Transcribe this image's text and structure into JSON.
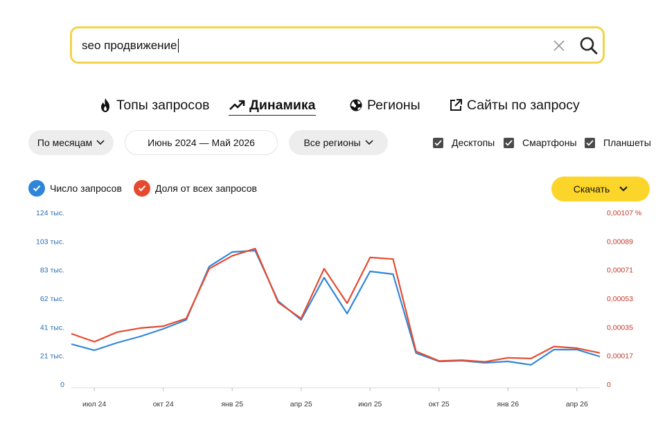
{
  "search": {
    "query": "seo продвижение"
  },
  "tabs": [
    {
      "label": "Топы запросов"
    },
    {
      "label": "Динамика"
    },
    {
      "label": "Регионы"
    },
    {
      "label": "Сайты по запросу"
    }
  ],
  "filters": {
    "period": "По месяцам",
    "range": "Июнь 2024 — Май 2026",
    "regions": "Все регионы"
  },
  "devices": [
    {
      "label": "Десктопы",
      "checked": true
    },
    {
      "label": "Смартфоны",
      "checked": true
    },
    {
      "label": "Планшеты",
      "checked": true
    }
  ],
  "legend": [
    {
      "label": "Число запросов",
      "color": "#2f86d8"
    },
    {
      "label": "Доля от всех запросов",
      "color": "#e64a2e"
    }
  ],
  "download_label": "Скачать",
  "chart_data": {
    "type": "line",
    "x": [
      "2024-06",
      "2024-07",
      "2024-08",
      "2024-09",
      "2024-10",
      "2024-11",
      "2024-12",
      "2025-01",
      "2025-02",
      "2025-03",
      "2025-04",
      "2025-05",
      "2025-06",
      "2025-07",
      "2025-08",
      "2025-09",
      "2025-10",
      "2025-11",
      "2025-12",
      "2025-01b",
      "2026-02",
      "2026-03",
      "2026-04",
      "2026-05"
    ],
    "xticks": [
      {
        "index": 1,
        "label": "июл 24"
      },
      {
        "index": 4,
        "label": "окт 24"
      },
      {
        "index": 7,
        "label": "янв 25"
      },
      {
        "index": 10,
        "label": "апр 25"
      },
      {
        "index": 13,
        "label": "июл 25"
      },
      {
        "index": 16,
        "label": "окт 25"
      },
      {
        "index": 19,
        "label": "янв 26"
      },
      {
        "index": 22,
        "label": "апр 26"
      }
    ],
    "yticks_left": [
      "0",
      "21 тыс.",
      "41 тыс.",
      "62 тыс.",
      "83 тыс.",
      "103 тыс.",
      "124 тыс."
    ],
    "yticks_right": [
      "0",
      "0,00017",
      "0,00035",
      "0,00053",
      "0,00071",
      "0,00089",
      "0,00107 %"
    ],
    "ylim_left": [
      0,
      124000
    ],
    "ylim_right": [
      0,
      0.00107
    ],
    "grid": false,
    "series": [
      {
        "name": "Число запросов",
        "color": "#2f86d8",
        "axis": "left",
        "values": [
          29000,
          24500,
          30000,
          34500,
          40000,
          46500,
          85000,
          95500,
          96500,
          60000,
          46500,
          77000,
          51000,
          81500,
          79500,
          22500,
          16500,
          17000,
          15500,
          16500,
          14000,
          25000,
          25000,
          20000
        ]
      },
      {
        "name": "Доля от всех запросов",
        "color": "#e64a2e",
        "axis": "right",
        "values": [
          0.000315,
          0.000265,
          0.000325,
          0.00035,
          0.000362,
          0.00041,
          0.00072,
          0.0008,
          0.000845,
          0.00051,
          0.00041,
          0.00072,
          0.000505,
          0.00079,
          0.00078,
          0.000205,
          0.000145,
          0.00015,
          0.00014,
          0.000165,
          0.00016,
          0.000235,
          0.000225,
          0.000195
        ]
      }
    ]
  }
}
